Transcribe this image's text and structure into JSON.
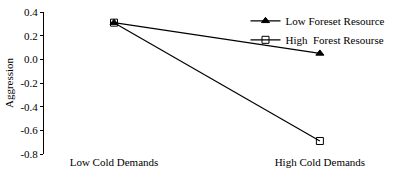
{
  "chart_data": {
    "type": "line",
    "categories": [
      "Low Cold Demands",
      "High Cold Demands"
    ],
    "series": [
      {
        "name": "Low Foreset Resource",
        "color": "#000000",
        "marker": "triangle-up",
        "line_style": "solid",
        "values": [
          0.31,
          0.05
        ]
      },
      {
        "name": "High  Forest Resourse",
        "color": "#000000",
        "marker": "square-open",
        "line_style": "solid",
        "values": [
          0.31,
          -0.69
        ]
      }
    ],
    "y_label": "Aggression",
    "ylim": [
      -0.8,
      0.4
    ],
    "yticks": [
      -0.8,
      -0.6,
      -0.4,
      -0.2,
      {
        "value": 0,
        "label": "0.0"
      },
      0.2,
      0.4
    ],
    "grid": false,
    "legend": "top-right"
  }
}
